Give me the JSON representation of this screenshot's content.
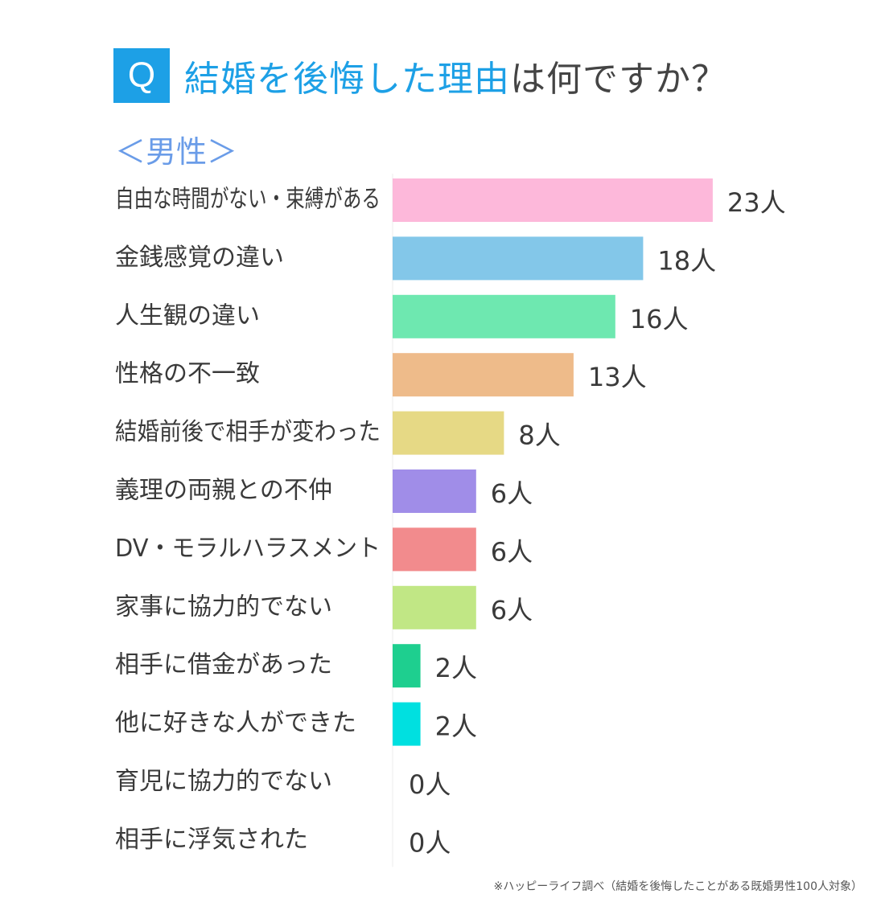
{
  "header": {
    "badge": "Q",
    "title_highlight": "結婚を後悔した理由",
    "title_rest": "は何ですか？",
    "subtitle": "＜男性＞"
  },
  "chart_data": {
    "type": "bar",
    "orientation": "horizontal",
    "title": "結婚を後悔した理由は何ですか？",
    "subtitle": "＜男性＞",
    "unit": "人",
    "categories": [
      "自由な時間がない・束縛がある",
      "金銭感覚の違い",
      "人生観の違い",
      "性格の不一致",
      "結婚前後で相手が変わった",
      "義理の両親との不仲",
      "DV・モラルハラスメント",
      "家事に協力的でない",
      "相手に借金があった",
      "他に好きな人ができた",
      "育児に協力的でない",
      "相手に浮気された"
    ],
    "values": [
      23,
      18,
      16,
      13,
      8,
      6,
      6,
      6,
      2,
      2,
      0,
      0
    ],
    "value_labels": [
      "23人",
      "18人",
      "16人",
      "13人",
      "8人",
      "6人",
      "6人",
      "6人",
      "2人",
      "2人",
      "0人",
      "0人"
    ],
    "colors": [
      "#fdb8da",
      "#83c7e9",
      "#6ee8b0",
      "#eebb8a",
      "#e6d985",
      "#a08de8",
      "#f28b8d",
      "#c1e785",
      "#1ecf8f",
      "#00e0e0",
      "#cccccc",
      "#cccccc"
    ],
    "xlim": [
      0,
      23
    ],
    "grid": false,
    "legend": "none"
  },
  "footnote": "※ハッピーライフ調べ（結婚を後悔したことがある既婚男性100人対象）"
}
